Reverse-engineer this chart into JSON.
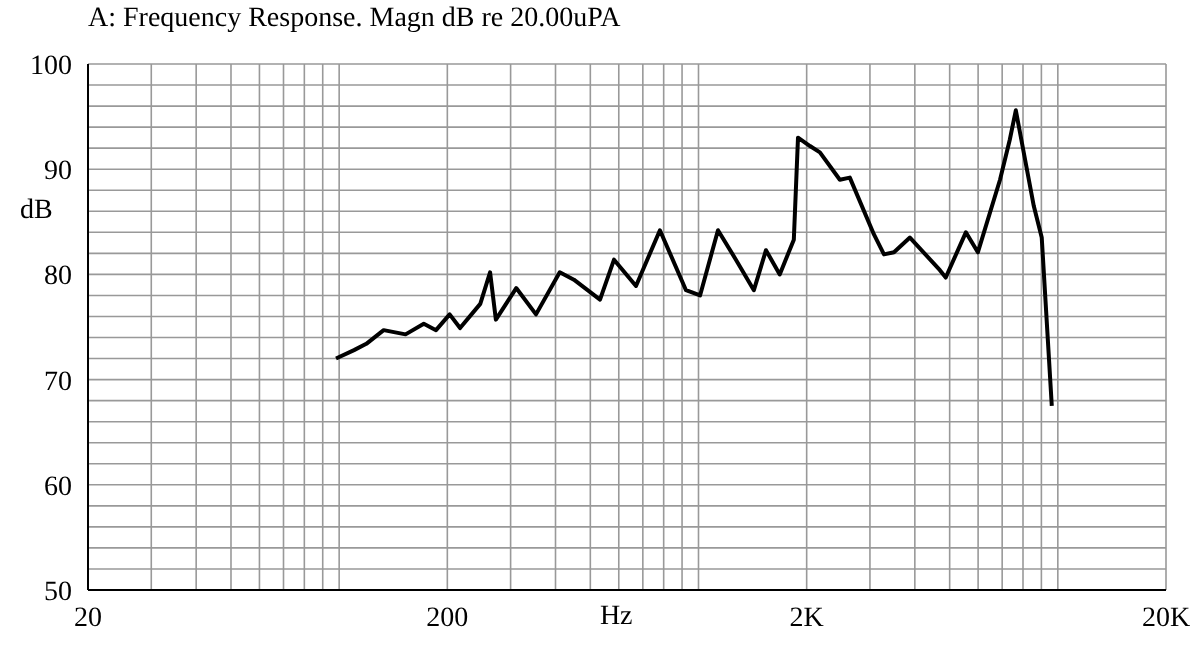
{
  "chart_data": {
    "type": "line",
    "title": "A: Frequency Response. Magn dB re 20.00uPA",
    "xlabel": "Hz",
    "ylabel": "dB",
    "log": "x",
    "grid": true,
    "marker": "none",
    "line_style": "solid",
    "xlim": [
      20,
      20000
    ],
    "xticks": [
      {
        "value": 20,
        "label": "20"
      },
      {
        "value": 30,
        "label": null
      },
      {
        "value": 40,
        "label": null
      },
      {
        "value": 50,
        "label": null
      },
      {
        "value": 60,
        "label": null
      },
      {
        "value": 70,
        "label": null
      },
      {
        "value": 80,
        "label": null
      },
      {
        "value": 90,
        "label": null
      },
      {
        "value": 100,
        "label": null
      },
      {
        "value": 200,
        "label": "200"
      },
      {
        "value": 300,
        "label": null
      },
      {
        "value": 400,
        "label": null
      },
      {
        "value": 500,
        "label": null
      },
      {
        "value": 600,
        "label": null
      },
      {
        "value": 700,
        "label": null
      },
      {
        "value": 800,
        "label": null
      },
      {
        "value": 900,
        "label": null
      },
      {
        "value": 1000,
        "label": null
      },
      {
        "value": 2000,
        "label": "2K"
      },
      {
        "value": 3000,
        "label": null
      },
      {
        "value": 4000,
        "label": null
      },
      {
        "value": 5000,
        "label": null
      },
      {
        "value": 6000,
        "label": null
      },
      {
        "value": 7000,
        "label": null
      },
      {
        "value": 8000,
        "label": null
      },
      {
        "value": 9000,
        "label": null
      },
      {
        "value": 10000,
        "label": null
      },
      {
        "value": 20000,
        "label": "20K"
      }
    ],
    "ylim": [
      50,
      100
    ],
    "yticks": [
      50,
      {
        "value": 52,
        "label": null
      },
      {
        "value": 54,
        "label": null
      },
      {
        "value": 56,
        "label": null
      },
      {
        "value": 58,
        "label": null
      },
      60,
      {
        "value": 62,
        "label": null
      },
      {
        "value": 64,
        "label": null
      },
      {
        "value": 66,
        "label": null
      },
      {
        "value": 68,
        "label": null
      },
      70,
      {
        "value": 72,
        "label": null
      },
      {
        "value": 74,
        "label": null
      },
      {
        "value": 76,
        "label": null
      },
      {
        "value": 78,
        "label": null
      },
      80,
      {
        "value": 82,
        "label": null
      },
      {
        "value": 84,
        "label": null
      },
      {
        "value": 86,
        "label": null
      },
      {
        "value": 88,
        "label": null
      },
      90,
      {
        "value": 92,
        "label": null
      },
      {
        "value": 94,
        "label": null
      },
      {
        "value": 96,
        "label": null
      },
      {
        "value": 98,
        "label": null
      },
      100
    ],
    "series": [
      {
        "color": "#000000",
        "x": [
          98,
          110,
          119,
          133,
          153,
          172,
          186,
          203,
          217,
          247,
          263,
          273,
          311,
          353,
          411,
          450,
          532,
          582,
          670,
          781,
          923,
          1010,
          1133,
          1271,
          1426,
          1541,
          1683,
          1842,
          1892,
          2043,
          2177,
          2474,
          2637,
          3078,
          3282,
          3500,
          3876,
          4697,
          4876,
          5547,
          5990,
          6904,
          7350,
          7640,
          8573,
          9020,
          9620
        ],
        "values": [
          72,
          72.8,
          73.4,
          74.7,
          74.3,
          75.3,
          74.7,
          76.2,
          74.9,
          77.2,
          80.2,
          75.7,
          78.7,
          76.2,
          80.2,
          79.5,
          77.6,
          81.4,
          78.9,
          84.2,
          78.5,
          78,
          84.2,
          81.4,
          78.5,
          82.3,
          80,
          83.3,
          93,
          92.2,
          91.6,
          89,
          89.2,
          83.8,
          81.9,
          82.1,
          83.5,
          80.4,
          79.7,
          84,
          82.1,
          89,
          92.8,
          95.6,
          86.5,
          83.5,
          67.5
        ]
      }
    ]
  }
}
